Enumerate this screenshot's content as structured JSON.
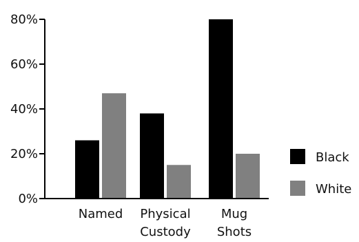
{
  "chart_data": {
    "type": "bar",
    "categories": [
      [
        "Named"
      ],
      [
        "Physical",
        "Custody"
      ],
      [
        "Mug",
        "Shots"
      ]
    ],
    "series": [
      {
        "name": "Black",
        "values": [
          26,
          38,
          80
        ],
        "color": "#000000"
      },
      {
        "name": "White",
        "values": [
          47,
          15,
          20
        ],
        "color": "#808080"
      }
    ],
    "ylim": [
      0,
      80
    ],
    "yticks": [
      "0%",
      "20%",
      "40%",
      "60%",
      "80%"
    ],
    "ytick_values": [
      0,
      20,
      40,
      60,
      80
    ],
    "legend_position": "right",
    "grid": false
  }
}
